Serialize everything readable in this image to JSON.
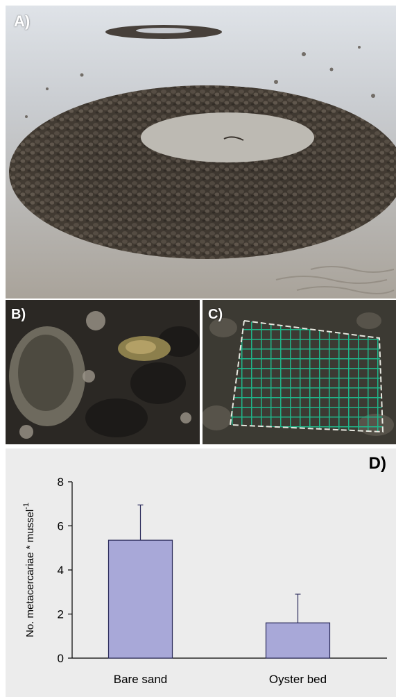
{
  "panels": {
    "a": {
      "label": "A)"
    },
    "b": {
      "label": "B)"
    },
    "c": {
      "label": "C)"
    },
    "d": {
      "label": "D)"
    }
  },
  "colors": {
    "bar_fill": "#a8a8d8",
    "bar_stroke": "#2a2a5a",
    "chart_bg": "#ececec"
  },
  "chart_data": {
    "type": "bar",
    "categories": [
      "Bare sand",
      "Oyster bed"
    ],
    "values": [
      5.35,
      1.6
    ],
    "error_upper": [
      1.6,
      1.3
    ],
    "ylabel": "No. metacercariae * mussel",
    "ylabel_superscript": "-1",
    "ylim": [
      0,
      8
    ],
    "yticks": [
      0,
      2,
      4,
      6,
      8
    ],
    "grid": false
  }
}
